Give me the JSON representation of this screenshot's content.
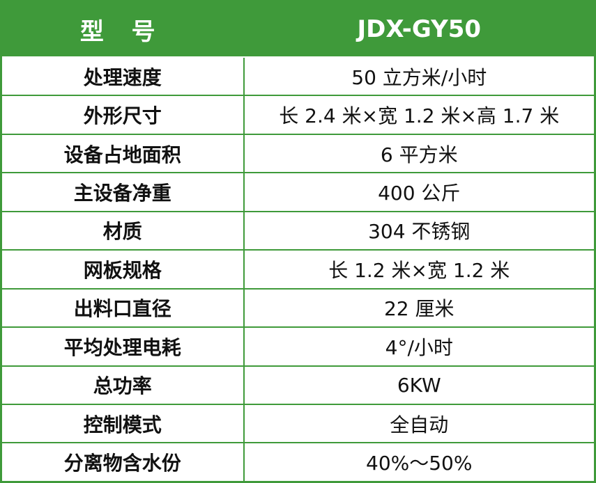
{
  "table": {
    "header": [
      "型 号",
      "JDX-GY50"
    ],
    "rows": [
      [
        "处理速度",
        "50 立方米/小时"
      ],
      [
        "外形尺寸",
        "长 2.4 米×宽 1.2 米×高 1.7 米"
      ],
      [
        "设备占地面积",
        "6 平方米"
      ],
      [
        "主设备净重",
        "400 公斤"
      ],
      [
        "材质",
        "304 不锈钢"
      ],
      [
        "网板规格",
        "长 1.2 米×宽 1.2 米"
      ],
      [
        "出料口直径",
        "22 厘米"
      ],
      [
        "平均处理电耗",
        "4°/小时"
      ],
      [
        "总功率",
        "6KW"
      ],
      [
        "控制模式",
        "全自动"
      ],
      [
        "分离物含水份",
        "40%～50%"
      ]
    ]
  }
}
